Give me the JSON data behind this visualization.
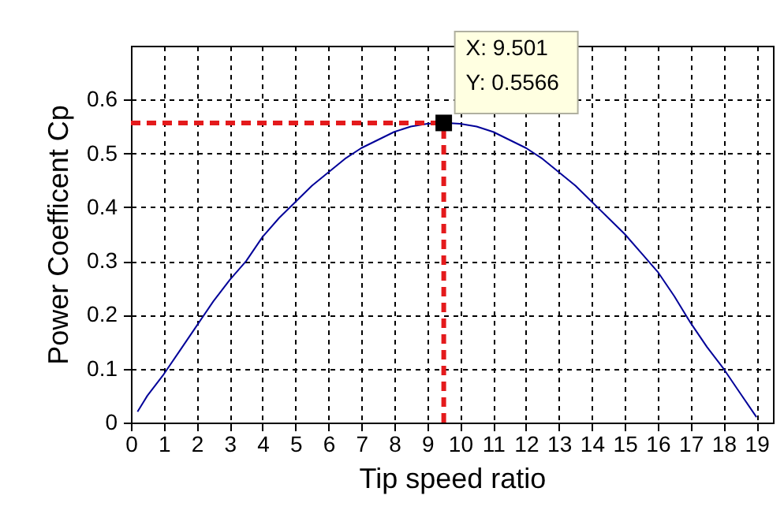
{
  "chart_data": {
    "type": "line",
    "xlabel": "Tip speed ratio",
    "ylabel": "Power Coefficent  Cp",
    "x": [
      0.2,
      0.5,
      1,
      1.5,
      2,
      2.5,
      3,
      3.5,
      4,
      4.5,
      5,
      5.5,
      6,
      6.5,
      7,
      7.5,
      8,
      8.5,
      9,
      9.5,
      10,
      10.5,
      11,
      11.5,
      12,
      12.5,
      13,
      13.5,
      14,
      14.5,
      15,
      15.5,
      16,
      16.5,
      17,
      17.5,
      18,
      18.5,
      19
    ],
    "series": [
      {
        "color": "#000099",
        "values": [
          0.02,
          0.05,
          0.09,
          0.135,
          0.18,
          0.225,
          0.265,
          0.3,
          0.345,
          0.38,
          0.41,
          0.44,
          0.465,
          0.49,
          0.51,
          0.525,
          0.54,
          0.55,
          0.555,
          0.557,
          0.555,
          0.55,
          0.54,
          0.525,
          0.51,
          0.49,
          0.465,
          0.44,
          0.41,
          0.38,
          0.35,
          0.315,
          0.28,
          0.235,
          0.185,
          0.14,
          0.1,
          0.055,
          0.01
        ]
      }
    ],
    "xlim": [
      0,
      19.5
    ],
    "xticks": [
      0,
      1,
      2,
      3,
      4,
      5,
      6,
      7,
      8,
      9,
      10,
      11,
      12,
      13,
      14,
      15,
      16,
      17,
      18,
      19
    ],
    "ylim": [
      0,
      0.7
    ],
    "yticks": [
      0,
      0.1,
      0.2,
      0.3,
      0.4,
      0.5,
      0.6
    ],
    "grid": true,
    "marker": "none",
    "line_style": "solid",
    "ref_lines": [
      {
        "axis": "x",
        "value": 9.501,
        "color": "#e41a1c",
        "line_style": "dashed"
      },
      {
        "axis": "y",
        "value": 0.5566,
        "color": "#e41a1c",
        "line_style": "dashed"
      }
    ],
    "annotations": [
      {
        "text": "X: 9.501\nY: 0.5566",
        "x": 9.501,
        "y": 0.5566
      }
    ]
  }
}
